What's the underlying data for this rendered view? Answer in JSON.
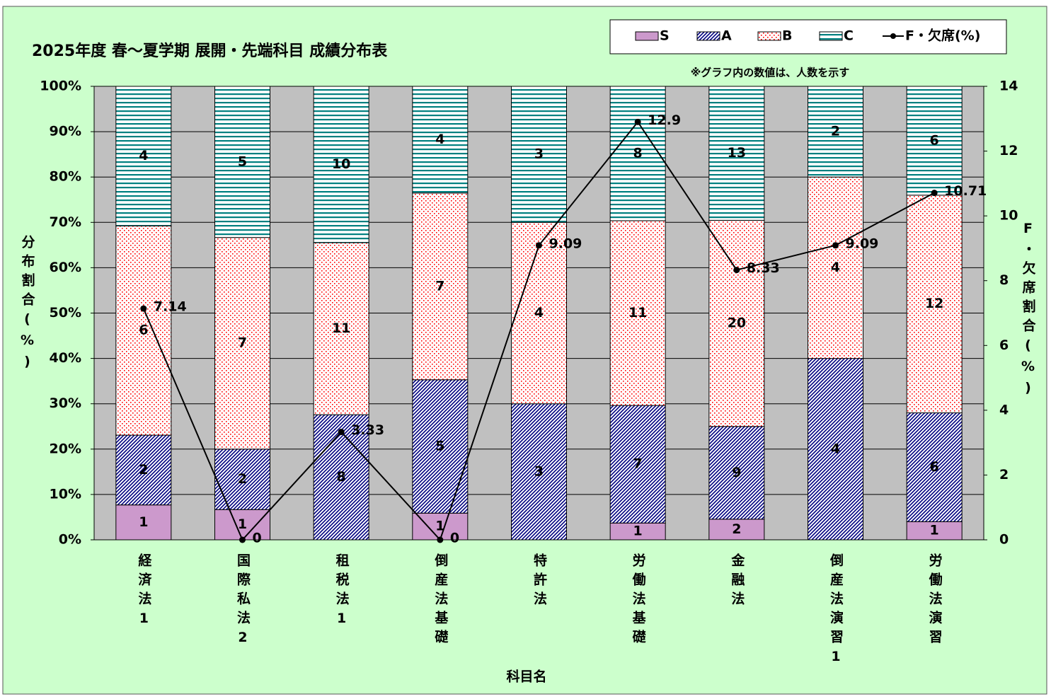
{
  "chart_data": {
    "type": "bar",
    "stack": "percent",
    "title": "2025年度 春～夏学期 展開・先端科目 成績分布表",
    "note": "※グラフ内の数値は、人数を示す",
    "x_label": "科目名",
    "y_label": "分布割合(%)",
    "y2_label": "F・欠席割合(%)",
    "categories": [
      "経済法1",
      "国際私法2",
      "租税法1",
      "倒産法基礎",
      "特許法",
      "労働法基礎",
      "金融法",
      "倒産法演習1",
      "労働法演習"
    ],
    "series": [
      {
        "name": "S",
        "color": "#cc99cc",
        "pattern": "solid",
        "values": [
          1,
          1,
          0,
          1,
          0,
          1,
          2,
          0,
          1
        ]
      },
      {
        "name": "A",
        "color": "#000080",
        "pattern": "diagonal",
        "values": [
          2,
          2,
          8,
          5,
          3,
          7,
          9,
          4,
          6
        ]
      },
      {
        "name": "B",
        "color": "#ff0000",
        "pattern": "dots",
        "values": [
          6,
          7,
          11,
          7,
          4,
          11,
          20,
          4,
          12
        ]
      },
      {
        "name": "C",
        "color": "#008080",
        "pattern": "horizontal",
        "values": [
          4,
          5,
          10,
          4,
          3,
          8,
          13,
          2,
          6
        ]
      },
      {
        "name": "F・欠席(%)",
        "type": "line",
        "axis": "y2",
        "color": "#000000",
        "values": [
          7.14,
          0,
          3.33,
          0,
          9.09,
          12.9,
          8.33,
          9.09,
          10.71
        ]
      }
    ],
    "ylim": [
      0,
      100
    ],
    "yticks": [
      {
        "value": 0,
        "label": "0%"
      },
      {
        "value": 10,
        "label": "10%"
      },
      {
        "value": 20,
        "label": "20%"
      },
      {
        "value": 30,
        "label": "30%"
      },
      {
        "value": 40,
        "label": "40%"
      },
      {
        "value": 50,
        "label": "50%"
      },
      {
        "value": 60,
        "label": "60%"
      },
      {
        "value": 70,
        "label": "70%"
      },
      {
        "value": 80,
        "label": "80%"
      },
      {
        "value": 90,
        "label": "90%"
      },
      {
        "value": 100,
        "label": "100%"
      }
    ],
    "y2lim": [
      0,
      14
    ],
    "y2ticks": [
      0,
      2,
      4,
      6,
      8,
      10,
      12,
      14
    ],
    "grid": true,
    "legend": "top-right"
  }
}
